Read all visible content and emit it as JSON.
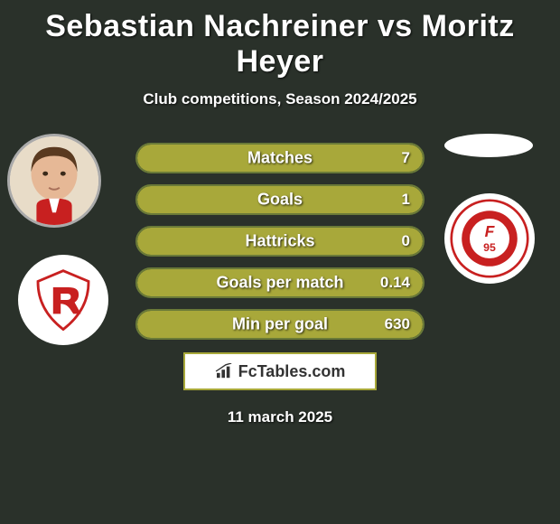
{
  "title": "Sebastian Nachreiner vs Moritz Heyer",
  "subtitle": "Club competitions, Season 2024/2025",
  "date": "11 march 2025",
  "site_name": "FcTables.com",
  "colors": {
    "background": "#2a312a",
    "bar_fill": "#a8a83a",
    "bar_border": "#6a7a38",
    "text": "#ffffff"
  },
  "left_player": {
    "name": "Sebastian Nachreiner",
    "club_badge": "regensburg"
  },
  "right_player": {
    "name": "Moritz Heyer",
    "club_badge": "fortuna"
  },
  "stats": [
    {
      "label": "Matches",
      "left_val": "",
      "right_val": "7",
      "left_fill_pct": 0,
      "right_fill_pct": 100
    },
    {
      "label": "Goals",
      "left_val": "",
      "right_val": "1",
      "left_fill_pct": 0,
      "right_fill_pct": 100
    },
    {
      "label": "Hattricks",
      "left_val": "",
      "right_val": "0",
      "left_fill_pct": 0,
      "right_fill_pct": 100
    },
    {
      "label": "Goals per match",
      "left_val": "",
      "right_val": "0.14",
      "left_fill_pct": 0,
      "right_fill_pct": 100
    },
    {
      "label": "Min per goal",
      "left_val": "",
      "right_val": "630",
      "left_fill_pct": 0,
      "right_fill_pct": 100
    }
  ]
}
